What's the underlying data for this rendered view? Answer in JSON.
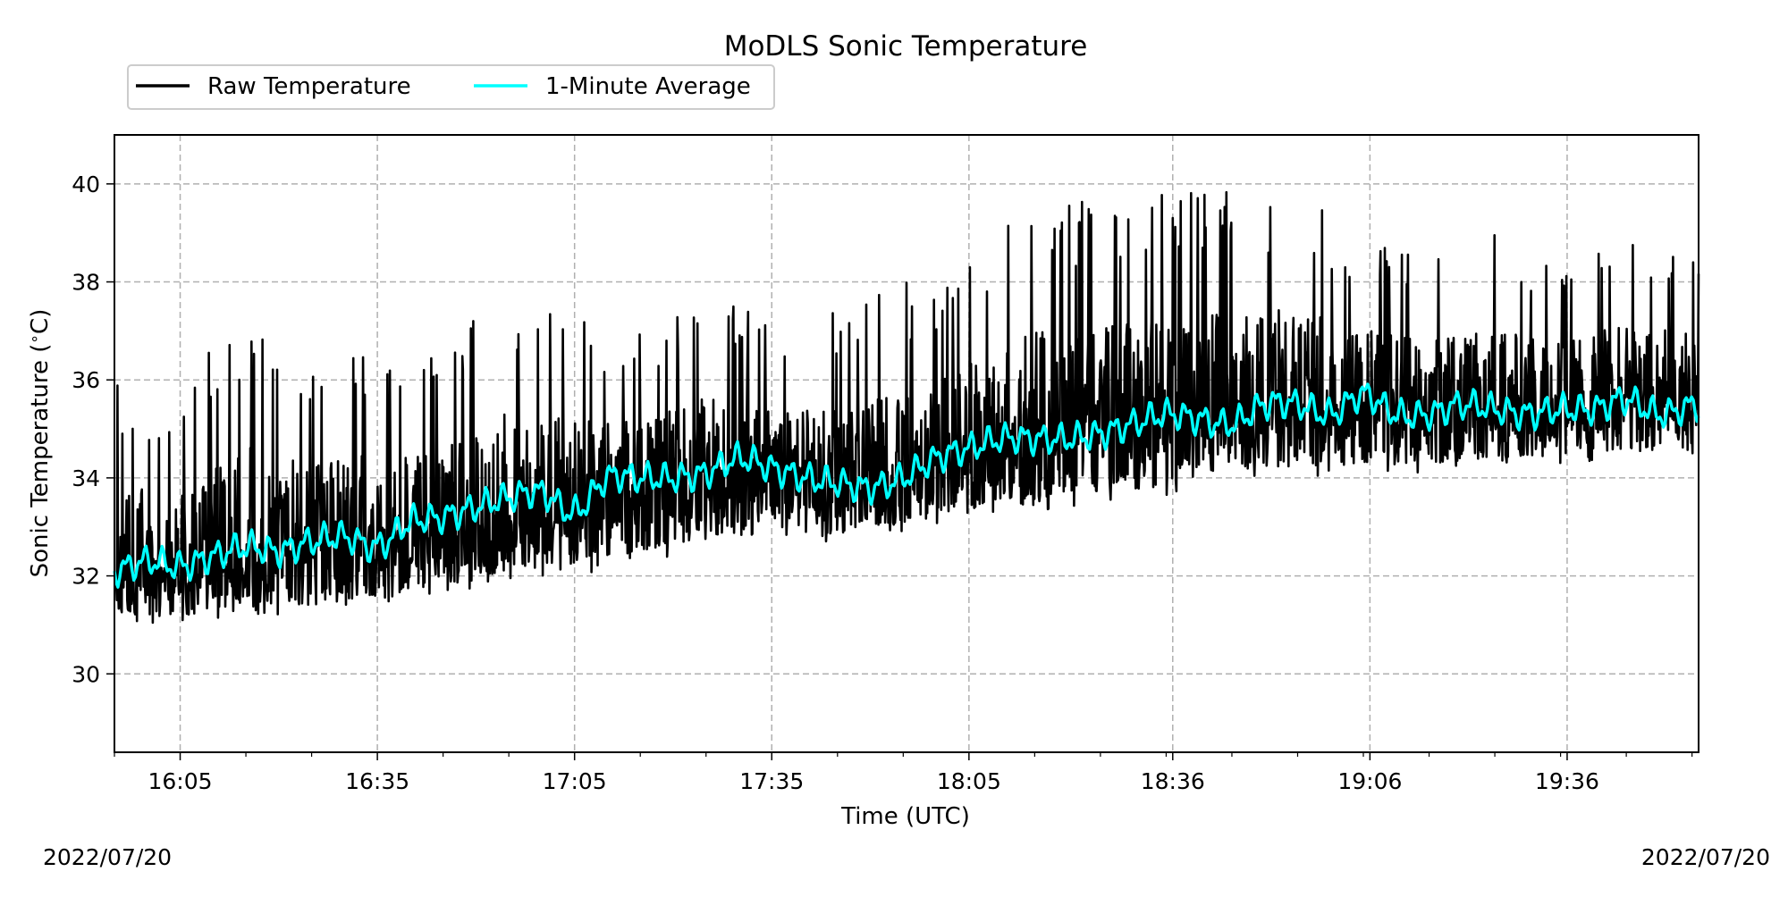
{
  "chart_data": {
    "type": "line",
    "title": "MoDLS Sonic Temperature",
    "xlabel": "Time (UTC)",
    "ylabel": "Sonic Temperature ($^\\circ$C)",
    "ylabel_text": "Sonic Temperature (",
    "ylabel_unit": "C)",
    "ylabel_degree": "∘",
    "xlim": [
      "15:55",
      "19:56"
    ],
    "ylim": [
      28.4,
      41.0
    ],
    "x_ticks": [
      "16:05",
      "16:35",
      "17:05",
      "17:35",
      "18:05",
      "18:36",
      "19:06",
      "19:36"
    ],
    "y_ticks": [
      30,
      32,
      34,
      36,
      38,
      40
    ],
    "grid": true,
    "legend_position": "top-left, outside above the plot",
    "footer_left": "2022/07/20",
    "footer_right": "2022/07/20",
    "series": [
      {
        "name": "Raw Temperature",
        "color": "#000000",
        "time": [
          "15:55",
          "16:05",
          "16:15",
          "16:25",
          "16:35",
          "16:45",
          "16:55",
          "17:05",
          "17:15",
          "17:25",
          "17:35",
          "17:45",
          "17:55",
          "18:05",
          "18:15",
          "18:25",
          "18:35",
          "18:45",
          "18:55",
          "19:05",
          "19:15",
          "19:25",
          "19:35",
          "19:45",
          "19:56"
        ],
        "center": [
          32.1,
          32.2,
          32.3,
          32.5,
          32.7,
          33.0,
          33.3,
          33.4,
          33.7,
          34.0,
          33.9,
          33.8,
          33.9,
          34.6,
          34.8,
          34.9,
          35.1,
          35.4,
          35.5,
          35.7,
          35.4,
          35.5,
          35.4,
          35.7,
          35.6
        ],
        "low": [
          31.0,
          31.0,
          31.2,
          31.2,
          31.4,
          31.6,
          31.9,
          32.0,
          32.3,
          32.5,
          32.7,
          32.7,
          32.9,
          33.2,
          33.3,
          33.5,
          33.6,
          34.0,
          34.0,
          34.0,
          34.1,
          34.2,
          34.3,
          34.3,
          34.4
        ],
        "high": [
          36.0,
          35.8,
          37.6,
          36.4,
          36.8,
          36.6,
          38.0,
          37.3,
          37.0,
          37.8,
          37.2,
          37.4,
          38.0,
          38.4,
          39.8,
          39.7,
          39.9,
          39.9,
          39.9,
          38.8,
          38.5,
          39.0,
          38.4,
          39.0,
          38.7
        ]
      },
      {
        "name": "1-Minute Average",
        "color": "#00ffff",
        "time": [
          "15:55",
          "16:00",
          "16:05",
          "16:10",
          "16:15",
          "16:20",
          "16:25",
          "16:30",
          "16:35",
          "16:40",
          "16:45",
          "16:50",
          "16:55",
          "17:00",
          "17:05",
          "17:10",
          "17:15",
          "17:20",
          "17:25",
          "17:30",
          "17:35",
          "17:40",
          "17:45",
          "17:50",
          "17:55",
          "18:00",
          "18:05",
          "18:10",
          "18:15",
          "18:20",
          "18:25",
          "18:30",
          "18:35",
          "18:40",
          "18:45",
          "18:50",
          "18:55",
          "19:00",
          "19:05",
          "19:10",
          "19:15",
          "19:20",
          "19:25",
          "19:30",
          "19:35",
          "19:40",
          "19:45",
          "19:50",
          "19:56"
        ],
        "values": [
          32.1,
          32.3,
          32.2,
          32.4,
          32.6,
          32.5,
          32.7,
          32.8,
          32.6,
          33.1,
          33.2,
          33.4,
          33.6,
          33.7,
          33.3,
          34.0,
          34.0,
          34.0,
          34.1,
          34.4,
          34.2,
          34.0,
          33.9,
          33.8,
          34.0,
          34.4,
          34.6,
          34.8,
          34.8,
          34.8,
          34.9,
          35.1,
          35.3,
          35.2,
          35.1,
          35.5,
          35.5,
          35.3,
          35.7,
          35.3,
          35.3,
          35.5,
          35.4,
          35.3,
          35.4,
          35.4,
          35.6,
          35.3,
          35.5
        ]
      }
    ]
  }
}
